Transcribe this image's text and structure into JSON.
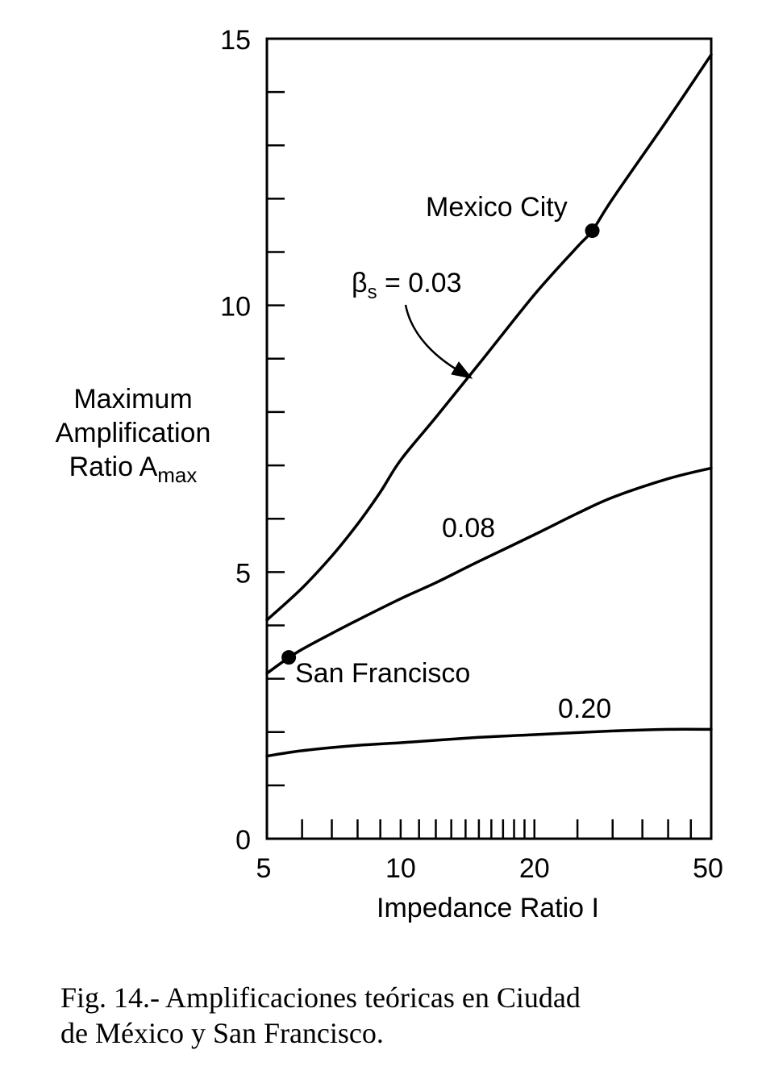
{
  "chart_data": {
    "type": "line",
    "xlabel": "Impedance Ratio I",
    "ylabel_lines": [
      "Maximum",
      "Amplification",
      "Ratio A"
    ],
    "ylabel_subscript": "max",
    "x_scale": "log",
    "xlim": [
      5,
      50
    ],
    "ylim": [
      0,
      15
    ],
    "x_ticks_labeled": [
      5,
      10,
      20,
      50
    ],
    "x_ticks_minor": [
      6,
      7,
      8,
      9,
      11,
      12,
      13,
      14,
      15,
      16,
      17,
      18,
      19,
      25,
      30,
      35,
      40,
      45
    ],
    "y_ticks_labeled": [
      0,
      5,
      10,
      15
    ],
    "y_ticks_minor": [
      1,
      2,
      3,
      4,
      6,
      7,
      8,
      9,
      11,
      12,
      13,
      14
    ],
    "grid": false,
    "series": [
      {
        "name": "β_s = 0.03",
        "x": [
          5,
          6,
          7,
          8,
          9,
          10,
          12,
          15,
          20,
          25,
          27,
          30,
          40,
          50
        ],
        "y": [
          4.1,
          4.7,
          5.3,
          5.9,
          6.5,
          7.1,
          7.9,
          8.9,
          10.2,
          11.1,
          11.4,
          12.0,
          13.5,
          14.7
        ]
      },
      {
        "name": "0.08",
        "x": [
          5,
          5.5,
          6,
          7,
          8,
          10,
          12,
          15,
          20,
          25,
          30,
          40,
          50
        ],
        "y": [
          3.1,
          3.35,
          3.55,
          3.85,
          4.1,
          4.5,
          4.8,
          5.2,
          5.7,
          6.1,
          6.4,
          6.75,
          6.95
        ]
      },
      {
        "name": "0.20",
        "x": [
          5,
          6,
          8,
          10,
          15,
          20,
          30,
          40,
          50
        ],
        "y": [
          1.55,
          1.65,
          1.75,
          1.8,
          1.9,
          1.95,
          2.02,
          2.05,
          2.05
        ]
      }
    ],
    "points": [
      {
        "name": "Mexico City",
        "x": 27,
        "y": 11.4
      },
      {
        "name": "San Francisco",
        "x": 5.6,
        "y": 3.4
      }
    ],
    "annotations": [
      {
        "text": "Mexico City"
      },
      {
        "text": "San Francisco"
      },
      {
        "text": "β",
        "sub": "s",
        "tail": " = 0.03"
      },
      {
        "text": "0.08"
      },
      {
        "text": "0.20"
      }
    ]
  },
  "caption": {
    "line1": "Fig. 14.- Amplificaciones teóricas en Ciudad",
    "line2": "de México y San Francisco."
  }
}
